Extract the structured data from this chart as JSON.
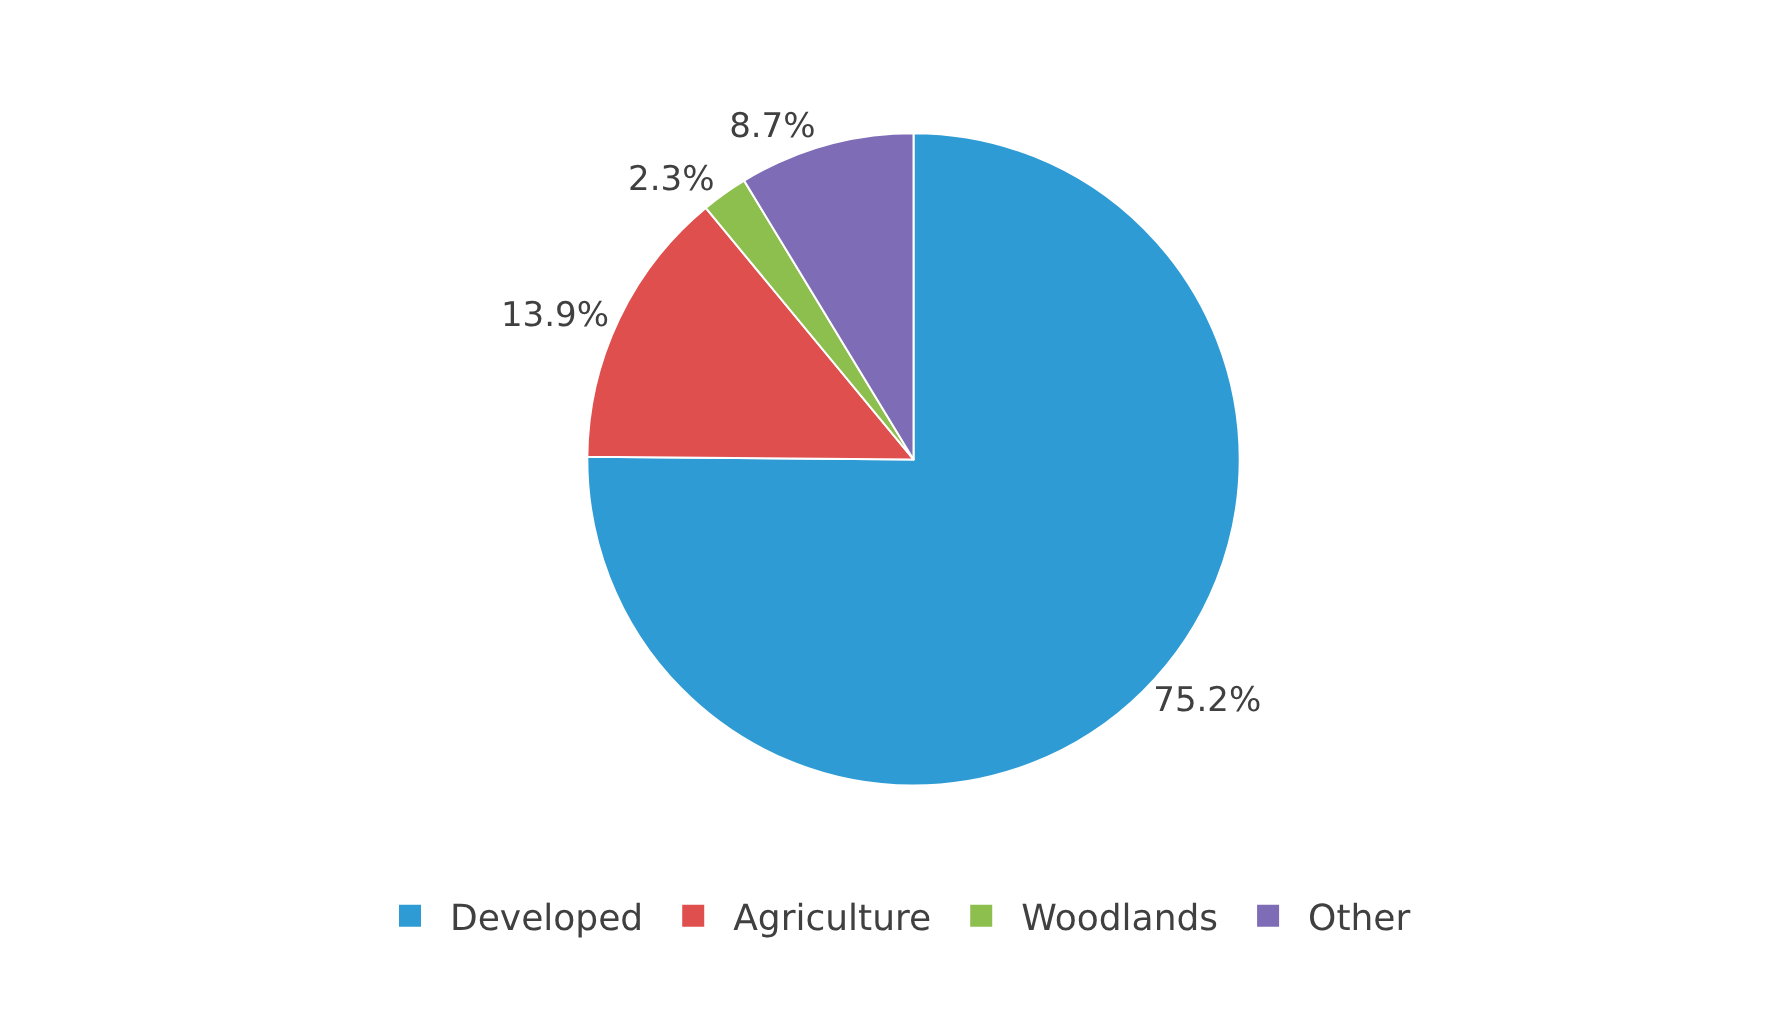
{
  "chart_data": {
    "type": "pie",
    "categories": [
      "Developed",
      "Agriculture",
      "Woodlands",
      "Other"
    ],
    "values": [
      75.2,
      13.9,
      2.3,
      8.7
    ],
    "colors": [
      "#2e9bd4",
      "#df4f4e",
      "#8dbf4e",
      "#7e6db6"
    ],
    "value_labels": [
      "75.2%",
      "13.9%",
      "2.3%",
      "8.7%"
    ],
    "legend": "bottom"
  }
}
